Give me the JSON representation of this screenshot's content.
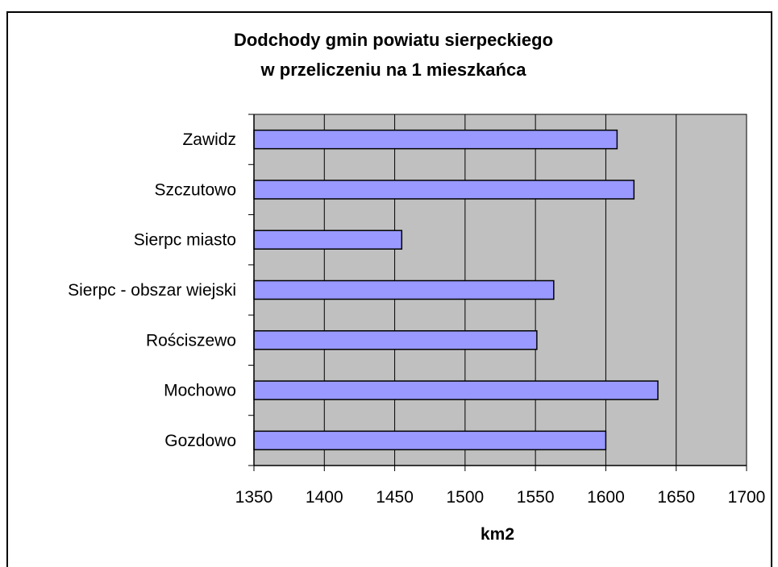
{
  "chart_data": {
    "type": "bar",
    "orientation": "horizontal",
    "title": "Dodchody gmin powiatu sierpeckiego",
    "subtitle": "w przeliczeniu na 1 mieszkańca",
    "xlabel": "km2",
    "ylabel": "",
    "categories": [
      "Gozdowo",
      "Mochowo",
      "Rościszewo",
      "Sierpc - obszar wiejski",
      "Sierpc miasto",
      "Szczutowo",
      "Zawidz"
    ],
    "values": [
      1600,
      1637,
      1551,
      1563,
      1455,
      1620,
      1608
    ],
    "xlim": [
      1350,
      1700
    ],
    "xticks": [
      1350,
      1400,
      1450,
      1500,
      1550,
      1600,
      1650,
      1700
    ],
    "xtick_labels": [
      "1350",
      "1400",
      "1450",
      "1500",
      "1550",
      "1600",
      "1650",
      "1700"
    ],
    "grid": true,
    "legend": "none",
    "colors": {
      "bar_fill": "#9999ff",
      "bar_stroke": "#000000",
      "plot_background": "#c0c0c0",
      "grid_line": "#000000"
    }
  }
}
